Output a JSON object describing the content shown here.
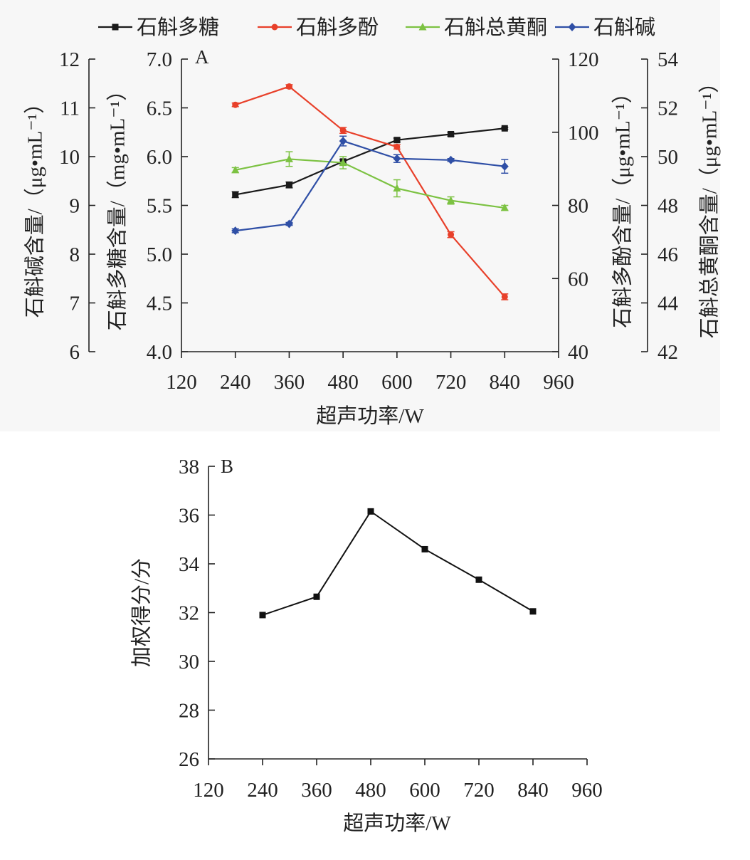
{
  "chart_data": [
    {
      "type": "line",
      "panel_label": "A",
      "x": [
        240,
        360,
        480,
        600,
        720,
        840
      ],
      "xticks": [
        120,
        240,
        360,
        480,
        600,
        720,
        840,
        960
      ],
      "xlim": [
        120,
        960
      ],
      "xlabel": "超声功率/W",
      "legend_position": "top",
      "grid": false,
      "axes": [
        {
          "id": "alkaloid",
          "label": "石斛碱含量/（μg•mL⁻¹）",
          "ylim": [
            6,
            12
          ],
          "ticks": [
            "6",
            "7",
            "8",
            "9",
            "10",
            "11",
            "12"
          ]
        },
        {
          "id": "polysaccharide",
          "label": "石斛多糖含量/（mg•mL⁻¹）",
          "ylim": [
            4.0,
            7.0
          ],
          "ticks": [
            "4.0",
            "4.5",
            "5.0",
            "5.5",
            "6.0",
            "6.5",
            "7.0"
          ]
        },
        {
          "id": "polyphenol",
          "label": "石斛多酚含量/（μg•mL⁻¹）",
          "ylim": [
            40,
            120
          ],
          "ticks": [
            "40",
            "60",
            "80",
            "100",
            "120"
          ]
        },
        {
          "id": "flavonoid",
          "label": "石斛总黄酮含量/（μg•mL⁻¹）",
          "ylim": [
            42,
            54
          ],
          "ticks": [
            "42",
            "44",
            "46",
            "48",
            "50",
            "52",
            "54"
          ]
        }
      ],
      "series": [
        {
          "name": "石斛多糖",
          "axis": "polysaccharide",
          "color": "#1a1a1a",
          "marker": "square",
          "values": [
            5.61,
            5.71,
            5.95,
            6.17,
            6.23,
            6.29
          ],
          "errors": [
            0.03,
            0.03,
            0.02,
            0.02,
            0.02,
            0.01
          ]
        },
        {
          "name": "石斛多酚",
          "axis": "polyphenol",
          "color": "#e8402a",
          "marker": "circle",
          "values": [
            107.5,
            112.5,
            100.5,
            96.0,
            72.0,
            55.0
          ],
          "errors": [
            0.5,
            0.5,
            0.8,
            0.6,
            0.8,
            0.8
          ]
        },
        {
          "name": "石斛总黄酮",
          "axis": "flavonoid",
          "color": "#7cc242",
          "marker": "triangle",
          "values": [
            49.45,
            49.9,
            49.75,
            48.7,
            48.2,
            47.9
          ],
          "errors": [
            0.1,
            0.3,
            0.25,
            0.35,
            0.15,
            0.1
          ]
        },
        {
          "name": "石斛碱",
          "axis": "alkaloid",
          "color": "#2f4fa6",
          "marker": "diamond",
          "values": [
            8.48,
            8.62,
            10.32,
            9.96,
            9.93,
            9.8
          ],
          "errors": [
            0.04,
            0.03,
            0.1,
            0.08,
            0.03,
            0.14
          ]
        }
      ]
    },
    {
      "type": "line",
      "panel_label": "B",
      "x": [
        240,
        360,
        480,
        600,
        720,
        840
      ],
      "xticks": [
        120,
        240,
        360,
        480,
        600,
        720,
        840,
        960
      ],
      "xlim": [
        120,
        960
      ],
      "xlabel": "超声功率/W",
      "ylabel": "加权得分/分",
      "ylim": [
        26,
        38
      ],
      "yticks": [
        26,
        28,
        30,
        32,
        34,
        36,
        38
      ],
      "grid": false,
      "series": [
        {
          "color": "#111111",
          "marker": "square",
          "values": [
            31.9,
            32.65,
            36.15,
            34.6,
            33.35,
            32.05
          ]
        }
      ]
    }
  ]
}
